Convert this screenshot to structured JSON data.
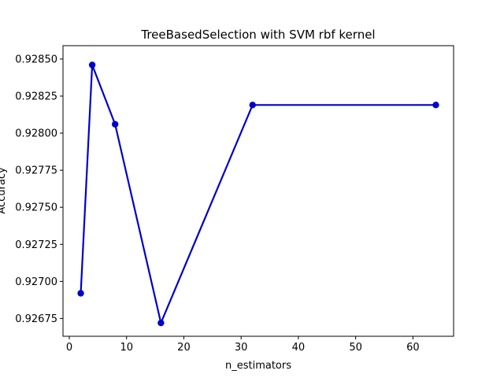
{
  "chart_data": {
    "type": "line",
    "title": "TreeBasedSelection with SVM rbf kernel",
    "xlabel": "n_estimators",
    "ylabel": "Accuracy",
    "xlim": [
      -1.1,
      67.1
    ],
    "ylim": [
      0.92663,
      0.92859
    ],
    "x_ticks": [
      0,
      10,
      20,
      30,
      40,
      50,
      60
    ],
    "y_ticks": [
      0.92675,
      0.927,
      0.92725,
      0.9275,
      0.92775,
      0.928,
      0.92825,
      0.9285
    ],
    "series": [
      {
        "x": [
          2,
          4,
          8,
          16,
          32,
          64
        ],
        "y": [
          0.92692,
          0.92846,
          0.92806,
          0.92672,
          0.92819,
          0.92819
        ],
        "color": "#0000cc",
        "marker": "circle"
      }
    ],
    "grid": false,
    "legend": "none"
  }
}
